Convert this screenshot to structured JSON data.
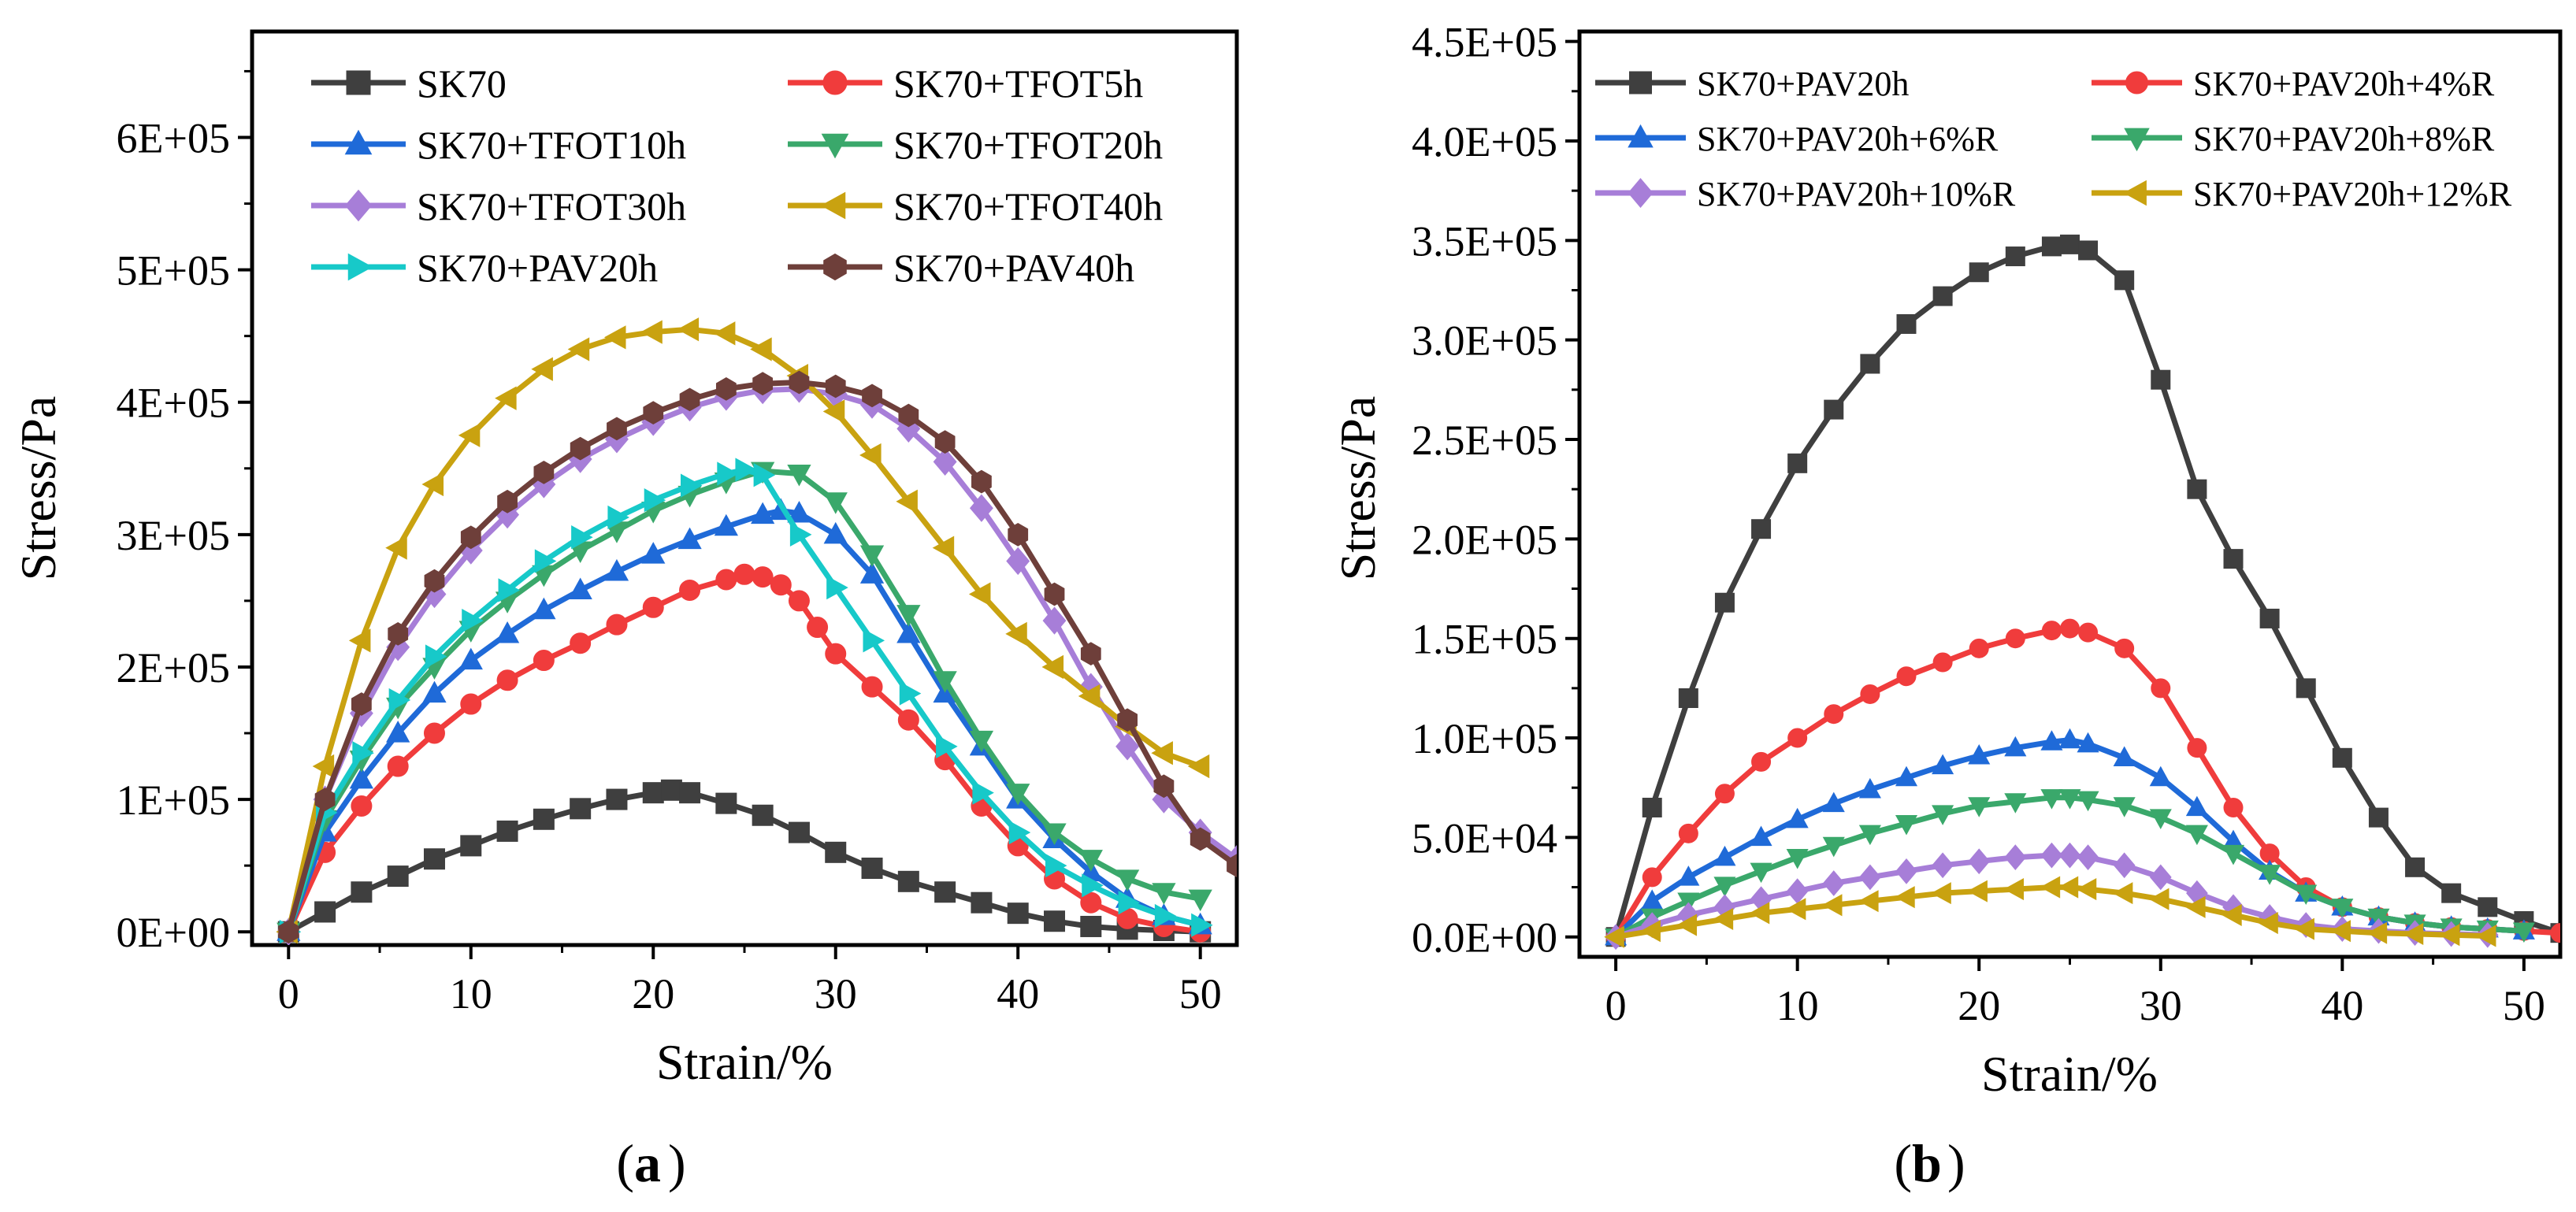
{
  "figure": {
    "caption_a": "a",
    "caption_b": "b"
  },
  "chart_data": [
    {
      "type": "line",
      "panel_label": "a",
      "xlabel": "Strain/%",
      "ylabel": "Stress/Pa",
      "xlim": [
        -2,
        52
      ],
      "ylim": [
        -10000,
        680000
      ],
      "xticks": [
        0,
        10,
        20,
        30,
        40,
        50
      ],
      "xtick_labels": [
        "0",
        "10",
        "20",
        "30",
        "40",
        "50"
      ],
      "yticks": [
        0,
        100000,
        200000,
        300000,
        400000,
        500000,
        600000
      ],
      "ytick_labels": [
        "0E+00",
        "1E+05",
        "2E+05",
        "3E+05",
        "4E+05",
        "5E+05",
        "6E+05"
      ],
      "legend_position": "top-left",
      "series": [
        {
          "name": "SK70",
          "color": "#3f3f3f",
          "marker": "square",
          "x": [
            0,
            2,
            4,
            6,
            8,
            10,
            12,
            14,
            16,
            18,
            20,
            21,
            22,
            24,
            26,
            28,
            30,
            32,
            34,
            36,
            38,
            40,
            42,
            44,
            46,
            48,
            50
          ],
          "y": [
            0,
            15000,
            30000,
            42000,
            55000,
            65000,
            76000,
            85000,
            93000,
            100000,
            105000,
            107000,
            105000,
            97000,
            88000,
            75000,
            60000,
            48000,
            38000,
            30000,
            22000,
            14000,
            8000,
            4000,
            2000,
            1000,
            0
          ]
        },
        {
          "name": "SK70+TFOT5h",
          "color": "#f03c3c",
          "marker": "circle",
          "x": [
            0,
            2,
            4,
            6,
            8,
            10,
            12,
            14,
            16,
            18,
            20,
            22,
            24,
            25,
            26,
            27,
            28,
            29,
            30,
            32,
            34,
            36,
            38,
            40,
            42,
            44,
            46,
            48,
            50
          ],
          "y": [
            0,
            60000,
            95000,
            125000,
            150000,
            172000,
            190000,
            205000,
            218000,
            232000,
            245000,
            258000,
            266000,
            270000,
            268000,
            262000,
            250000,
            230000,
            210000,
            185000,
            160000,
            130000,
            95000,
            65000,
            40000,
            22000,
            10000,
            4000,
            0
          ]
        },
        {
          "name": "SK70+TFOT10h",
          "color": "#1f6ad8",
          "marker": "triangle-up",
          "x": [
            0,
            2,
            4,
            6,
            8,
            10,
            12,
            14,
            16,
            18,
            20,
            22,
            24,
            26,
            27,
            28,
            30,
            32,
            34,
            36,
            38,
            40,
            42,
            44,
            46,
            48,
            50
          ],
          "y": [
            0,
            75000,
            115000,
            150000,
            180000,
            205000,
            225000,
            243000,
            258000,
            272000,
            285000,
            296000,
            306000,
            315000,
            318000,
            316000,
            300000,
            270000,
            225000,
            180000,
            140000,
            100000,
            70000,
            45000,
            25000,
            12000,
            5000
          ]
        },
        {
          "name": "SK70+TFOT20h",
          "color": "#3aa86b",
          "marker": "triangle-down",
          "x": [
            0,
            2,
            4,
            6,
            8,
            10,
            12,
            14,
            16,
            18,
            20,
            22,
            24,
            26,
            28,
            30,
            32,
            34,
            36,
            38,
            40,
            42,
            44,
            46,
            48,
            50
          ],
          "y": [
            0,
            85000,
            130000,
            170000,
            200000,
            228000,
            250000,
            270000,
            288000,
            303000,
            318000,
            330000,
            340000,
            348000,
            346000,
            325000,
            285000,
            240000,
            190000,
            145000,
            105000,
            75000,
            55000,
            40000,
            30000,
            25000
          ]
        },
        {
          "name": "SK70+TFOT30h",
          "color": "#a77ed8",
          "marker": "diamond",
          "x": [
            0,
            2,
            4,
            6,
            8,
            10,
            12,
            14,
            16,
            18,
            20,
            22,
            24,
            26,
            28,
            30,
            32,
            34,
            36,
            38,
            40,
            42,
            44,
            46,
            48,
            50,
            52
          ],
          "y": [
            0,
            100000,
            165000,
            215000,
            255000,
            288000,
            315000,
            338000,
            357000,
            372000,
            385000,
            396000,
            404000,
            409000,
            410000,
            406000,
            398000,
            380000,
            355000,
            320000,
            280000,
            235000,
            185000,
            140000,
            100000,
            75000,
            55000
          ]
        },
        {
          "name": "SK70+TFOT40h",
          "color": "#c9a210",
          "marker": "triangle-left",
          "x": [
            0,
            2,
            4,
            6,
            8,
            10,
            12,
            14,
            16,
            18,
            20,
            22,
            24,
            26,
            28,
            30,
            32,
            34,
            36,
            38,
            40,
            42,
            44,
            46,
            48,
            50
          ],
          "y": [
            0,
            125000,
            220000,
            290000,
            338000,
            375000,
            403000,
            425000,
            440000,
            449000,
            453000,
            455000,
            452000,
            440000,
            420000,
            393000,
            360000,
            325000,
            290000,
            255000,
            225000,
            200000,
            178000,
            155000,
            135000,
            125000
          ]
        },
        {
          "name": "SK70+PAV20h",
          "color": "#17c9c9",
          "marker": "triangle-right",
          "x": [
            0,
            2,
            4,
            6,
            8,
            10,
            12,
            14,
            16,
            18,
            20,
            22,
            24,
            25,
            26,
            28,
            30,
            32,
            34,
            36,
            38,
            40,
            42,
            44,
            46,
            48,
            50
          ],
          "y": [
            0,
            90000,
            135000,
            175000,
            208000,
            235000,
            258000,
            280000,
            298000,
            313000,
            326000,
            337000,
            346000,
            349000,
            345000,
            300000,
            260000,
            220000,
            180000,
            140000,
            105000,
            75000,
            50000,
            35000,
            22000,
            12000,
            5000
          ]
        },
        {
          "name": "SK70+PAV40h",
          "color": "#6e3f3a",
          "marker": "hexagon",
          "x": [
            0,
            2,
            4,
            6,
            8,
            10,
            12,
            14,
            16,
            18,
            20,
            22,
            24,
            26,
            28,
            30,
            32,
            34,
            36,
            38,
            40,
            42,
            44,
            46,
            48,
            50,
            52
          ],
          "y": [
            0,
            100000,
            172000,
            225000,
            265000,
            298000,
            325000,
            347000,
            365000,
            380000,
            392000,
            402000,
            410000,
            414000,
            415000,
            412000,
            405000,
            390000,
            370000,
            340000,
            300000,
            255000,
            210000,
            160000,
            110000,
            70000,
            50000
          ]
        }
      ]
    },
    {
      "type": "line",
      "panel_label": "b",
      "xlabel": "Strain/%",
      "ylabel": "Stress/Pa",
      "xlim": [
        -2,
        52
      ],
      "ylim": [
        -10000,
        455000
      ],
      "xticks": [
        0,
        10,
        20,
        30,
        40,
        50
      ],
      "xtick_labels": [
        "0",
        "10",
        "20",
        "30",
        "40",
        "50"
      ],
      "yticks": [
        0,
        50000,
        100000,
        150000,
        200000,
        250000,
        300000,
        350000,
        400000,
        450000
      ],
      "ytick_labels": [
        "0.0E+00",
        "5.0E+04",
        "1.0E+05",
        "1.5E+05",
        "2.0E+05",
        "2.5E+05",
        "3.0E+05",
        "3.5E+05",
        "4.0E+05",
        "4.5E+05"
      ],
      "legend_position": "top",
      "series": [
        {
          "name": "SK70+PAV20h",
          "color": "#3f3f3f",
          "marker": "square",
          "x": [
            0,
            2,
            4,
            6,
            8,
            10,
            12,
            14,
            16,
            18,
            20,
            22,
            24,
            25,
            26,
            28,
            30,
            32,
            34,
            36,
            38,
            40,
            42,
            44,
            46,
            48,
            50,
            52
          ],
          "y": [
            0,
            65000,
            120000,
            168000,
            205000,
            238000,
            265000,
            288000,
            308000,
            322000,
            334000,
            342000,
            347000,
            348000,
            345000,
            330000,
            280000,
            225000,
            190000,
            160000,
            125000,
            90000,
            60000,
            35000,
            22000,
            15000,
            8000,
            2000
          ]
        },
        {
          "name": "SK70+PAV20h+4%R",
          "color": "#f03c3c",
          "marker": "circle",
          "x": [
            0,
            2,
            4,
            6,
            8,
            10,
            12,
            14,
            16,
            18,
            20,
            22,
            24,
            25,
            26,
            28,
            30,
            32,
            34,
            36,
            38,
            40,
            42,
            44,
            46,
            48,
            50,
            52
          ],
          "y": [
            0,
            30000,
            52000,
            72000,
            88000,
            100000,
            112000,
            122000,
            131000,
            138000,
            145000,
            150000,
            154000,
            155000,
            153000,
            145000,
            125000,
            95000,
            65000,
            42000,
            25000,
            15000,
            10000,
            7000,
            5000,
            4000,
            3000,
            2000
          ]
        },
        {
          "name": "SK70+PAV20h+6%R",
          "color": "#1f6ad8",
          "marker": "triangle-up",
          "x": [
            0,
            2,
            4,
            6,
            8,
            10,
            12,
            14,
            16,
            18,
            20,
            22,
            24,
            25,
            26,
            28,
            30,
            32,
            34,
            36,
            38,
            40,
            42,
            44,
            46,
            48,
            50
          ],
          "y": [
            0,
            18000,
            30000,
            40000,
            50000,
            59000,
            67000,
            74000,
            80000,
            86000,
            91000,
            95000,
            98000,
            99000,
            97000,
            90000,
            80000,
            65000,
            48000,
            33000,
            22000,
            15000,
            10000,
            7000,
            5000,
            4000,
            3000
          ]
        },
        {
          "name": "SK70+PAV20h+8%R",
          "color": "#3aa86b",
          "marker": "triangle-down",
          "x": [
            0,
            2,
            4,
            6,
            8,
            10,
            12,
            14,
            16,
            18,
            20,
            22,
            24,
            25,
            26,
            28,
            30,
            32,
            34,
            36,
            38,
            40,
            42,
            44,
            46,
            48,
            50
          ],
          "y": [
            0,
            10000,
            18000,
            26000,
            33000,
            40000,
            46000,
            52000,
            57000,
            62000,
            66000,
            68000,
            70000,
            70000,
            69000,
            66000,
            60000,
            52000,
            42000,
            32000,
            22000,
            15000,
            10000,
            7000,
            5000,
            4000,
            3000
          ]
        },
        {
          "name": "SK70+PAV20h+10%R",
          "color": "#a77ed8",
          "marker": "diamond",
          "x": [
            0,
            2,
            4,
            6,
            8,
            10,
            12,
            14,
            16,
            18,
            20,
            22,
            24,
            25,
            26,
            28,
            30,
            32,
            34,
            36,
            38,
            40,
            42,
            44,
            46,
            48
          ],
          "y": [
            0,
            6000,
            11000,
            15000,
            19000,
            23000,
            27000,
            30000,
            33000,
            36000,
            38000,
            40000,
            41000,
            41000,
            40000,
            36000,
            30000,
            22000,
            15000,
            10000,
            6000,
            4000,
            3000,
            2000,
            1500,
            1000
          ]
        },
        {
          "name": "SK70+PAV20h+12%R",
          "color": "#c9a210",
          "marker": "triangle-left",
          "x": [
            0,
            2,
            4,
            6,
            8,
            10,
            12,
            14,
            16,
            18,
            20,
            22,
            24,
            25,
            26,
            28,
            30,
            32,
            34,
            36,
            38,
            40,
            42,
            44,
            46,
            48
          ],
          "y": [
            0,
            3000,
            6000,
            9000,
            12000,
            14000,
            16000,
            18000,
            20000,
            22000,
            23000,
            24000,
            25000,
            25000,
            24000,
            22000,
            19000,
            15000,
            11000,
            7000,
            4000,
            3000,
            2000,
            1500,
            1000,
            500
          ]
        }
      ]
    }
  ]
}
